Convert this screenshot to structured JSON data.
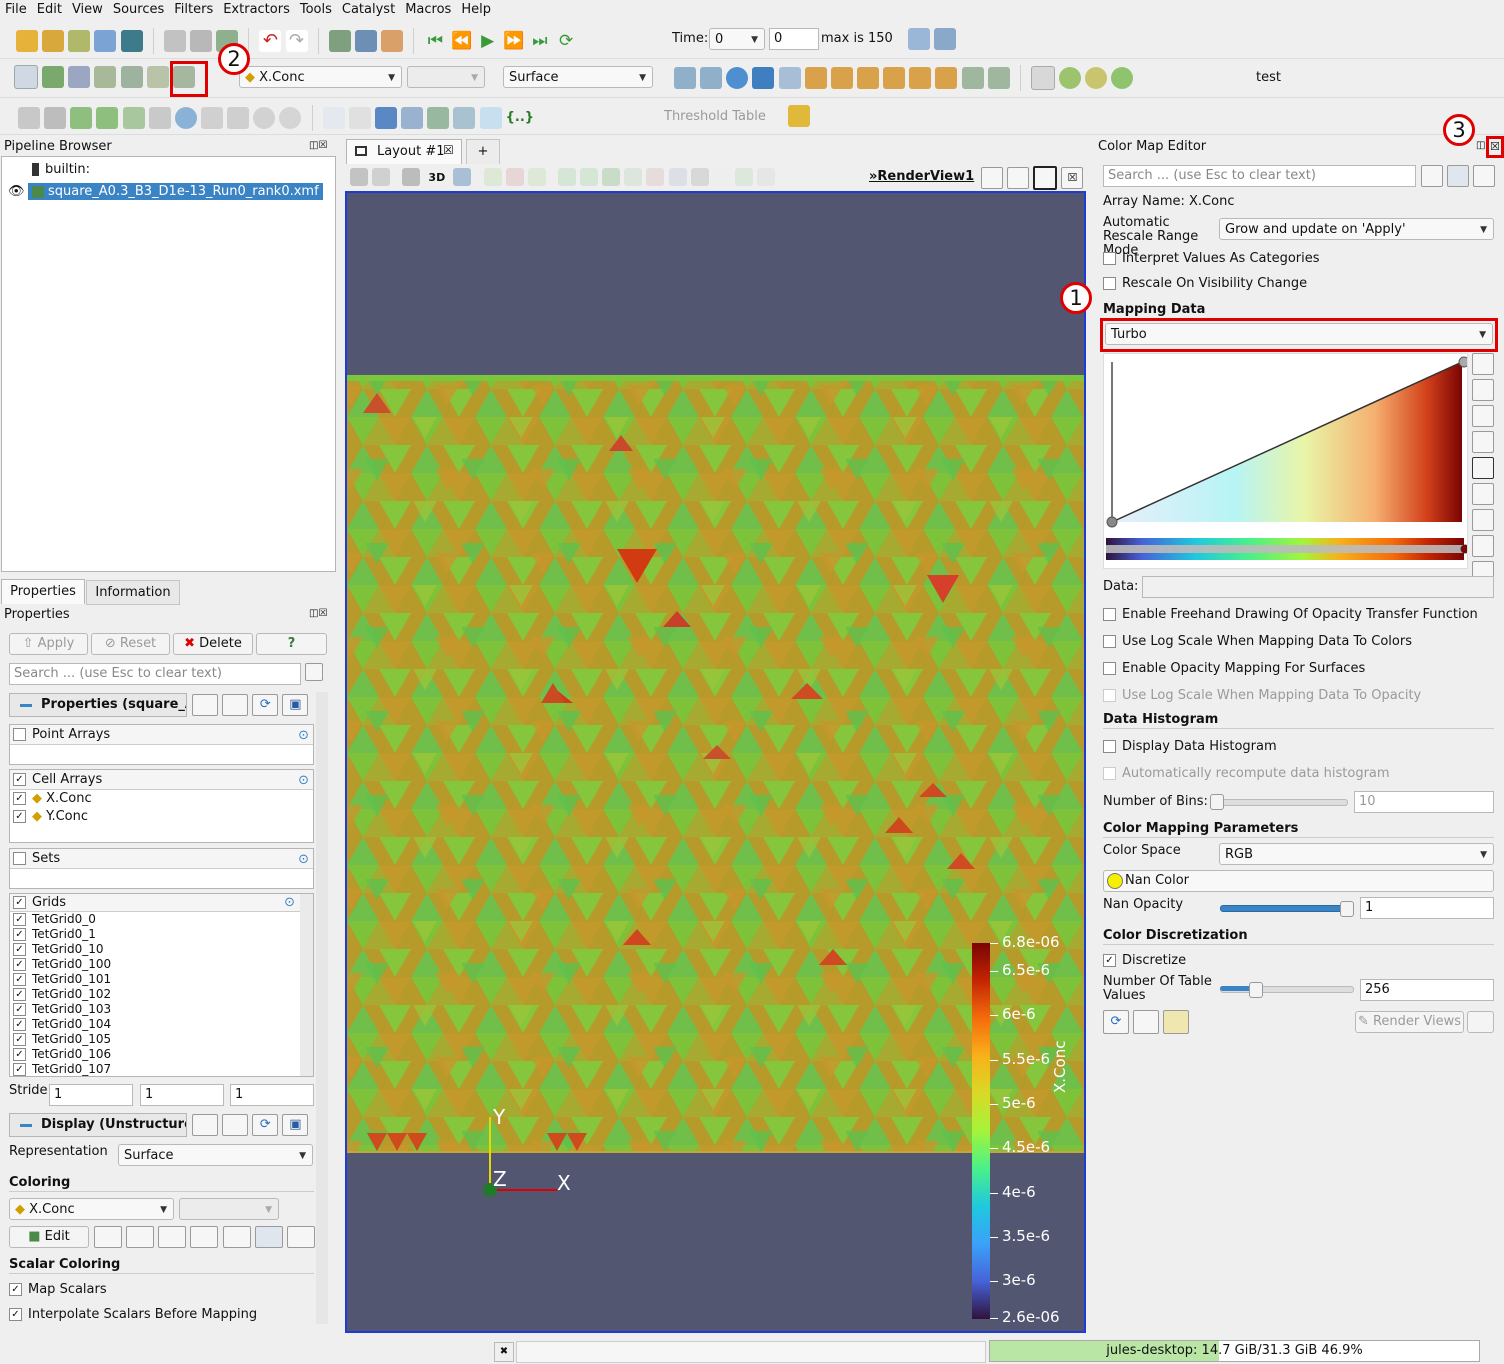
{
  "menu": [
    "File",
    "Edit",
    "View",
    "Sources",
    "Filters",
    "Extractors",
    "Tools",
    "Catalyst",
    "Macros",
    "Help"
  ],
  "time_toolbar": {
    "time_label": "Time:",
    "time_value": "0",
    "step_value": "0",
    "max_label": "max is 150"
  },
  "toolbar2": {
    "array_combo": "X.Conc",
    "component_combo": "",
    "representation_combo": "Surface",
    "macro": "test"
  },
  "toolbar3": {
    "threshold_table": "Threshold Table"
  },
  "pipeline": {
    "title": "Pipeline Browser",
    "builtin": "builtin:",
    "file": "square_A0.3_B3_D1e-13_Run0_rank0.xmf"
  },
  "tabs": {
    "properties": "Properties",
    "information": "Information"
  },
  "properties": {
    "header": "Properties",
    "apply": "Apply",
    "reset": "Reset",
    "delete": "Delete",
    "help": "?",
    "search_placeholder": "Search ... (use Esc to clear text)",
    "section_title": "Properties (square_A",
    "point_arrays": "Point Arrays",
    "cell_arrays": "Cell Arrays",
    "cell_items": [
      "X.Conc",
      "Y.Conc"
    ],
    "sets": "Sets",
    "grids": "Grids",
    "grid_items": [
      "TetGrid0_0",
      "TetGrid0_1",
      "TetGrid0_10",
      "TetGrid0_100",
      "TetGrid0_101",
      "TetGrid0_102",
      "TetGrid0_103",
      "TetGrid0_104",
      "TetGrid0_105",
      "TetGrid0_106",
      "TetGrid0_107"
    ],
    "stride_label": "Stride",
    "stride_values": [
      "1",
      "1",
      "1"
    ],
    "display_title": "Display (UnstructuredG",
    "representation_label": "Representation",
    "representation_value": "Surface",
    "coloring": "Coloring",
    "coloring_array": "X.Conc",
    "edit": "Edit",
    "scalar_coloring": "Scalar Coloring",
    "map_scalars": "Map Scalars",
    "interpolate": "Interpolate Scalars Before Mapping"
  },
  "layout": {
    "tab": "Layout #1",
    "add": "+",
    "view_name": "RenderView1",
    "btn_3d": "3D"
  },
  "scalar_bar": {
    "title": "X.Conc",
    "labels": [
      "6.8e-06",
      "6.5e-6",
      "6e-6",
      "5.5e-6",
      "5e-6",
      "4.5e-6",
      "4e-6",
      "3.5e-6",
      "3e-6",
      "2.6e-06"
    ]
  },
  "axes": {
    "y": "Y",
    "z": "Z",
    "x": "X"
  },
  "colormap": {
    "title": "Color Map Editor",
    "search_placeholder": "Search ... (use Esc to clear text)",
    "array_name": "Array Name: X.Conc",
    "rescale_label": "Automatic Rescale Range Mode",
    "rescale_value": "Grow and update on 'Apply'",
    "interpret": "Interpret Values As Categories",
    "rescale_visibility": "Rescale On Visibility Change",
    "mapping_data": "Mapping Data",
    "preset": "Turbo",
    "data_label": "Data:",
    "freehand": "Enable Freehand Drawing Of Opacity Transfer Function",
    "log_colors": "Use Log Scale When Mapping Data To Colors",
    "opacity_surfaces": "Enable Opacity Mapping For Surfaces",
    "log_opacity": "Use Log Scale When Mapping Data To Opacity",
    "histogram": "Data Histogram",
    "display_histogram": "Display Data Histogram",
    "auto_recompute": "Automatically recompute data histogram",
    "bins_label": "Number of Bins:",
    "bins_value": "10",
    "params": "Color Mapping Parameters",
    "color_space_label": "Color Space",
    "color_space_value": "RGB",
    "nan_color": "Nan Color",
    "nan_opacity_label": "Nan Opacity",
    "nan_opacity_value": "1",
    "discretization": "Color Discretization",
    "discretize": "Discretize",
    "table_values_label": "Number Of Table Values",
    "table_values": "256",
    "render_views": "Render Views"
  },
  "annotations": {
    "one": "1",
    "two": "2",
    "three": "3"
  },
  "status": {
    "memory": "jules-desktop: 14.7 GiB/31.3 GiB 46.9%",
    "memory_fraction": 0.469
  },
  "colors": {
    "view_bg": "#535670",
    "accent_red": "#e00000",
    "selection": "#3a83c4"
  }
}
